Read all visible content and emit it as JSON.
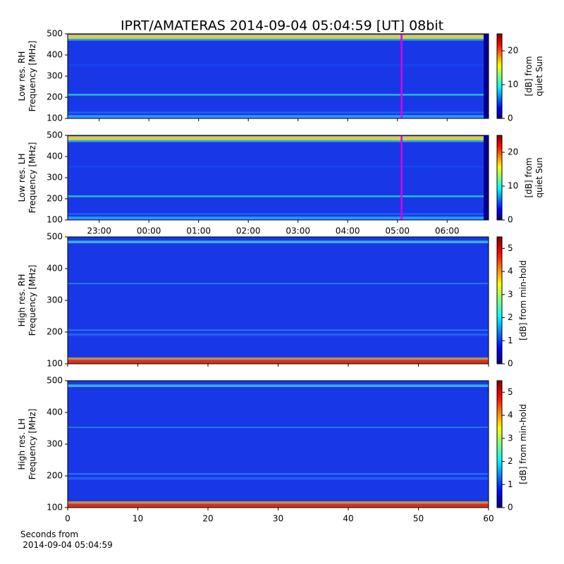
{
  "chart_data": [
    {
      "type": "heatmap",
      "title": "IPRT/AMATERAS 2014-09-04 05:04:59 [UT]   08bit",
      "ylabel": [
        "Low res. RH",
        "Frequency [MHz]"
      ],
      "ylim": [
        100,
        500
      ],
      "yticks": [
        100,
        200,
        300,
        400,
        500
      ],
      "xlim": [
        "22:22",
        "06:50"
      ],
      "sharex": 1,
      "marker_time": "05:05",
      "marker_color": "#e000e0",
      "colorbar_label": [
        "[dB] from",
        "quiet Sun"
      ],
      "clim": [
        0,
        25
      ],
      "cticks": [
        0,
        10,
        20
      ],
      "colormap": "jet"
    },
    {
      "type": "heatmap",
      "ylabel": [
        "Low res. LH",
        "Frequency [MHz]"
      ],
      "ylim": [
        100,
        500
      ],
      "yticks": [
        100,
        200,
        300,
        400,
        500
      ],
      "xlim": [
        "22:22",
        "06:50"
      ],
      "xticks": [
        "23:00",
        "00:00",
        "01:00",
        "02:00",
        "03:00",
        "04:00",
        "05:00",
        "06:00"
      ],
      "marker_time": "05:05",
      "marker_color": "#e000e0",
      "colorbar_label": [
        "[dB] from",
        "quiet Sun"
      ],
      "clim": [
        0,
        25
      ],
      "cticks": [
        0,
        10,
        20
      ],
      "colormap": "jet"
    },
    {
      "type": "heatmap",
      "ylabel": [
        "High res. RH",
        "Frequency [MHz]"
      ],
      "ylim": [
        100,
        500
      ],
      "yticks": [
        100,
        200,
        300,
        400,
        500
      ],
      "xlim": [
        0,
        60
      ],
      "sharex": 3,
      "colorbar_label": [
        "[dB] from min-hold"
      ],
      "clim": [
        0,
        5.5
      ],
      "cticks": [
        0,
        1,
        2,
        3,
        4,
        5
      ],
      "colormap": "jet"
    },
    {
      "type": "heatmap",
      "ylabel": [
        "High res. LH",
        "Frequency [MHz]"
      ],
      "ylim": [
        100,
        500
      ],
      "yticks": [
        100,
        200,
        300,
        400,
        500
      ],
      "xlim": [
        0,
        60
      ],
      "xticks": [
        0,
        10,
        20,
        30,
        40,
        50,
        60
      ],
      "xlabel": [
        "Seconds from",
        "2014-09-04 05:04:59"
      ],
      "colorbar_label": [
        "[dB] from min-hold"
      ],
      "clim": [
        0,
        5.5
      ],
      "cticks": [
        0,
        1,
        2,
        3,
        4,
        5
      ],
      "colormap": "jet"
    }
  ]
}
